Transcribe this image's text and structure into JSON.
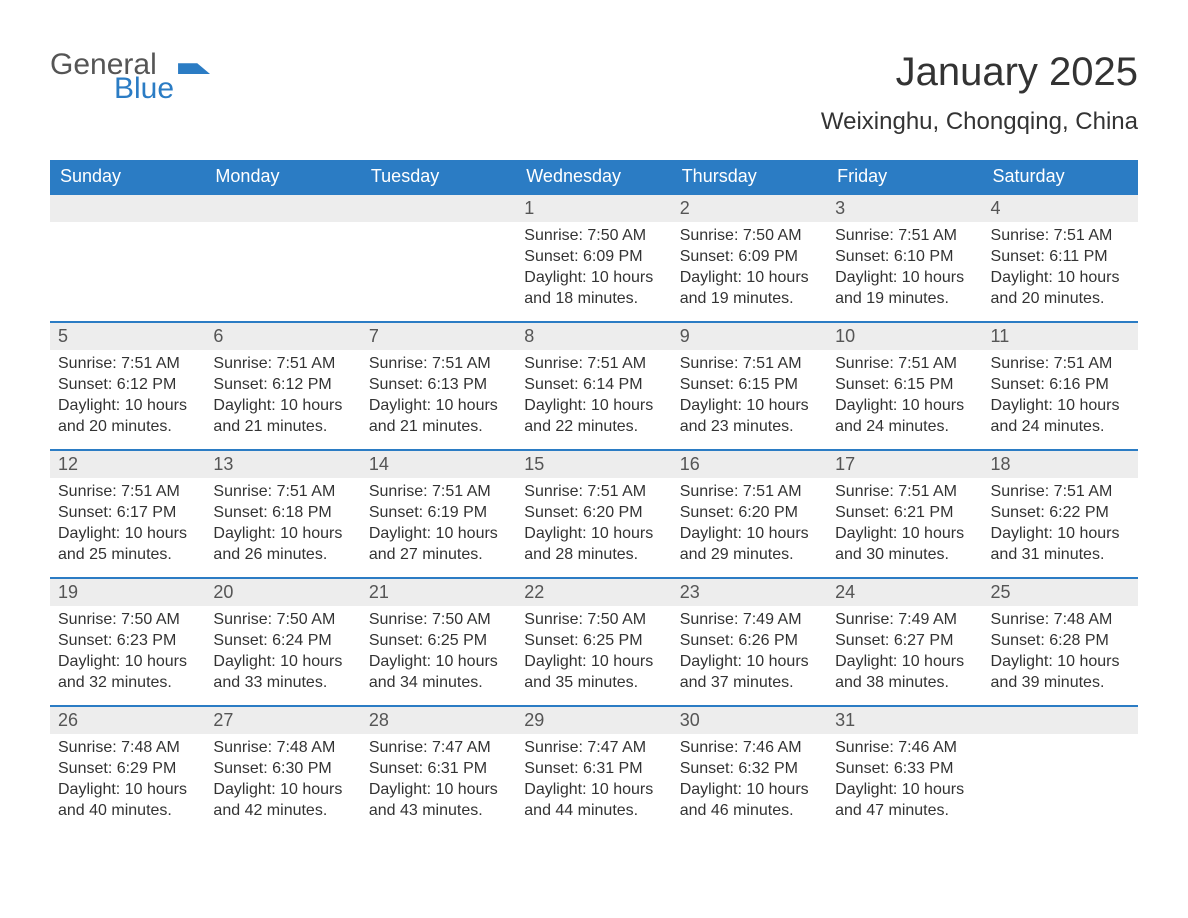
{
  "logo": {
    "word1": "General",
    "word2": "Blue"
  },
  "title": "January 2025",
  "location": "Weixinghu, Chongqing, China",
  "colors": {
    "header_bg": "#2b7cc4",
    "header_text": "#ffffff",
    "daynum_bg": "#ededed",
    "border": "#2b7cc4",
    "text": "#333333"
  },
  "columns": [
    "Sunday",
    "Monday",
    "Tuesday",
    "Wednesday",
    "Thursday",
    "Friday",
    "Saturday"
  ],
  "weeks": [
    [
      {
        "n": "",
        "empty": true
      },
      {
        "n": "",
        "empty": true
      },
      {
        "n": "",
        "empty": true
      },
      {
        "n": "1",
        "sunrise": "Sunrise: 7:50 AM",
        "sunset": "Sunset: 6:09 PM",
        "daylight": "Daylight: 10 hours and 18 minutes."
      },
      {
        "n": "2",
        "sunrise": "Sunrise: 7:50 AM",
        "sunset": "Sunset: 6:09 PM",
        "daylight": "Daylight: 10 hours and 19 minutes."
      },
      {
        "n": "3",
        "sunrise": "Sunrise: 7:51 AM",
        "sunset": "Sunset: 6:10 PM",
        "daylight": "Daylight: 10 hours and 19 minutes."
      },
      {
        "n": "4",
        "sunrise": "Sunrise: 7:51 AM",
        "sunset": "Sunset: 6:11 PM",
        "daylight": "Daylight: 10 hours and 20 minutes."
      }
    ],
    [
      {
        "n": "5",
        "sunrise": "Sunrise: 7:51 AM",
        "sunset": "Sunset: 6:12 PM",
        "daylight": "Daylight: 10 hours and 20 minutes."
      },
      {
        "n": "6",
        "sunrise": "Sunrise: 7:51 AM",
        "sunset": "Sunset: 6:12 PM",
        "daylight": "Daylight: 10 hours and 21 minutes."
      },
      {
        "n": "7",
        "sunrise": "Sunrise: 7:51 AM",
        "sunset": "Sunset: 6:13 PM",
        "daylight": "Daylight: 10 hours and 21 minutes."
      },
      {
        "n": "8",
        "sunrise": "Sunrise: 7:51 AM",
        "sunset": "Sunset: 6:14 PM",
        "daylight": "Daylight: 10 hours and 22 minutes."
      },
      {
        "n": "9",
        "sunrise": "Sunrise: 7:51 AM",
        "sunset": "Sunset: 6:15 PM",
        "daylight": "Daylight: 10 hours and 23 minutes."
      },
      {
        "n": "10",
        "sunrise": "Sunrise: 7:51 AM",
        "sunset": "Sunset: 6:15 PM",
        "daylight": "Daylight: 10 hours and 24 minutes."
      },
      {
        "n": "11",
        "sunrise": "Sunrise: 7:51 AM",
        "sunset": "Sunset: 6:16 PM",
        "daylight": "Daylight: 10 hours and 24 minutes."
      }
    ],
    [
      {
        "n": "12",
        "sunrise": "Sunrise: 7:51 AM",
        "sunset": "Sunset: 6:17 PM",
        "daylight": "Daylight: 10 hours and 25 minutes."
      },
      {
        "n": "13",
        "sunrise": "Sunrise: 7:51 AM",
        "sunset": "Sunset: 6:18 PM",
        "daylight": "Daylight: 10 hours and 26 minutes."
      },
      {
        "n": "14",
        "sunrise": "Sunrise: 7:51 AM",
        "sunset": "Sunset: 6:19 PM",
        "daylight": "Daylight: 10 hours and 27 minutes."
      },
      {
        "n": "15",
        "sunrise": "Sunrise: 7:51 AM",
        "sunset": "Sunset: 6:20 PM",
        "daylight": "Daylight: 10 hours and 28 minutes."
      },
      {
        "n": "16",
        "sunrise": "Sunrise: 7:51 AM",
        "sunset": "Sunset: 6:20 PM",
        "daylight": "Daylight: 10 hours and 29 minutes."
      },
      {
        "n": "17",
        "sunrise": "Sunrise: 7:51 AM",
        "sunset": "Sunset: 6:21 PM",
        "daylight": "Daylight: 10 hours and 30 minutes."
      },
      {
        "n": "18",
        "sunrise": "Sunrise: 7:51 AM",
        "sunset": "Sunset: 6:22 PM",
        "daylight": "Daylight: 10 hours and 31 minutes."
      }
    ],
    [
      {
        "n": "19",
        "sunrise": "Sunrise: 7:50 AM",
        "sunset": "Sunset: 6:23 PM",
        "daylight": "Daylight: 10 hours and 32 minutes."
      },
      {
        "n": "20",
        "sunrise": "Sunrise: 7:50 AM",
        "sunset": "Sunset: 6:24 PM",
        "daylight": "Daylight: 10 hours and 33 minutes."
      },
      {
        "n": "21",
        "sunrise": "Sunrise: 7:50 AM",
        "sunset": "Sunset: 6:25 PM",
        "daylight": "Daylight: 10 hours and 34 minutes."
      },
      {
        "n": "22",
        "sunrise": "Sunrise: 7:50 AM",
        "sunset": "Sunset: 6:25 PM",
        "daylight": "Daylight: 10 hours and 35 minutes."
      },
      {
        "n": "23",
        "sunrise": "Sunrise: 7:49 AM",
        "sunset": "Sunset: 6:26 PM",
        "daylight": "Daylight: 10 hours and 37 minutes."
      },
      {
        "n": "24",
        "sunrise": "Sunrise: 7:49 AM",
        "sunset": "Sunset: 6:27 PM",
        "daylight": "Daylight: 10 hours and 38 minutes."
      },
      {
        "n": "25",
        "sunrise": "Sunrise: 7:48 AM",
        "sunset": "Sunset: 6:28 PM",
        "daylight": "Daylight: 10 hours and 39 minutes."
      }
    ],
    [
      {
        "n": "26",
        "sunrise": "Sunrise: 7:48 AM",
        "sunset": "Sunset: 6:29 PM",
        "daylight": "Daylight: 10 hours and 40 minutes."
      },
      {
        "n": "27",
        "sunrise": "Sunrise: 7:48 AM",
        "sunset": "Sunset: 6:30 PM",
        "daylight": "Daylight: 10 hours and 42 minutes."
      },
      {
        "n": "28",
        "sunrise": "Sunrise: 7:47 AM",
        "sunset": "Sunset: 6:31 PM",
        "daylight": "Daylight: 10 hours and 43 minutes."
      },
      {
        "n": "29",
        "sunrise": "Sunrise: 7:47 AM",
        "sunset": "Sunset: 6:31 PM",
        "daylight": "Daylight: 10 hours and 44 minutes."
      },
      {
        "n": "30",
        "sunrise": "Sunrise: 7:46 AM",
        "sunset": "Sunset: 6:32 PM",
        "daylight": "Daylight: 10 hours and 46 minutes."
      },
      {
        "n": "31",
        "sunrise": "Sunrise: 7:46 AM",
        "sunset": "Sunset: 6:33 PM",
        "daylight": "Daylight: 10 hours and 47 minutes."
      },
      {
        "n": "",
        "empty": true
      }
    ]
  ]
}
